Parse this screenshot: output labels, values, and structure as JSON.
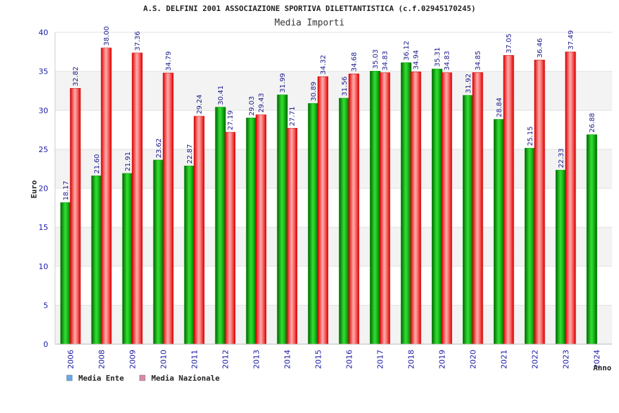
{
  "chart_data": {
    "type": "bar",
    "title": "A.S. DELFINI 2001 ASSOCIAZIONE SPORTIVA DILETTANTISTICA (c.f.02945170245)",
    "subtitle": "Media Importi",
    "ylabel": "Euro",
    "xlabel": "Anno",
    "ylim": [
      0,
      40
    ],
    "yticks": [
      0,
      5,
      10,
      15,
      20,
      25,
      30,
      35,
      40
    ],
    "grid": true,
    "legend_position": "bottom-left",
    "categories": [
      "2006",
      "2008",
      "2009",
      "2010",
      "2011",
      "2012",
      "2013",
      "2014",
      "2015",
      "2016",
      "2017",
      "2018",
      "2019",
      "2020",
      "2021",
      "2022",
      "2023",
      "2024"
    ],
    "series": [
      {
        "name": "Media Ente",
        "color": "#00aa00",
        "legend_color": "#66aaee",
        "values": [
          18.17,
          21.6,
          21.91,
          23.62,
          22.87,
          30.41,
          29.03,
          31.99,
          30.89,
          31.56,
          35.03,
          36.12,
          35.31,
          31.92,
          28.84,
          25.15,
          22.33,
          26.88
        ],
        "labels": [
          "18.17",
          "21.60",
          "21.91",
          "23.62",
          "22.87",
          "30.41",
          "29.03",
          "31.99",
          "30.89",
          "31.56",
          "35.03",
          "36.12",
          "35.31",
          "31.92",
          "28.84",
          "25.15",
          "22.33",
          "26.88"
        ]
      },
      {
        "name": "Media Nazionale",
        "color": "#ee2222",
        "legend_color": "#dd88aa",
        "values": [
          32.82,
          38.0,
          37.36,
          34.79,
          29.24,
          27.19,
          29.43,
          27.71,
          34.32,
          34.68,
          34.83,
          34.94,
          34.83,
          34.85,
          37.05,
          36.46,
          37.49,
          null
        ],
        "labels": [
          "32.82",
          "38.00",
          "37.36",
          "34.79",
          "29.24",
          "27.19",
          "29.43",
          "27.71",
          "34.32",
          "34.68",
          "34.83",
          "34.94",
          "34.83",
          "34.85",
          "37.05",
          "36.46",
          "37.49",
          ""
        ]
      }
    ]
  }
}
